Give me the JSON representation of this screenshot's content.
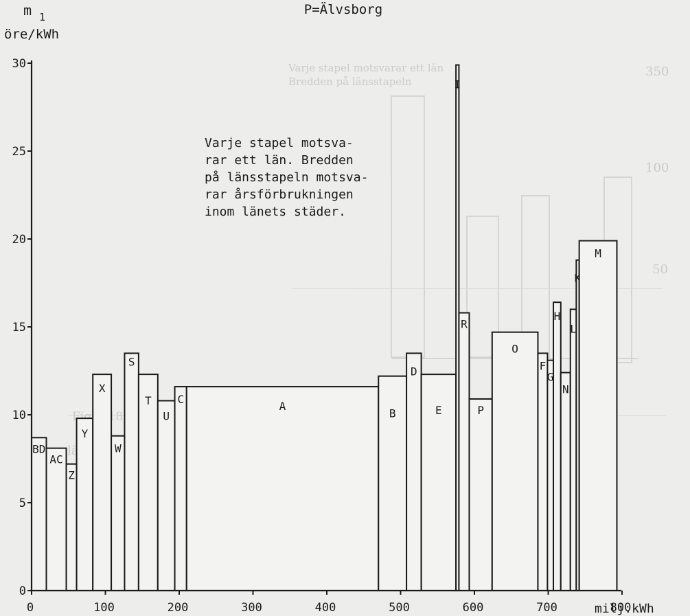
{
  "chart_data": {
    "type": "bar",
    "variable_width": true,
    "title": "P=Älvsborg",
    "ylabel_symbol": "m",
    "ylabel_subscript": "1",
    "ylabel_unit": "öre/kWh",
    "xlabel": "milj.kWh",
    "xlim": [
      0,
      850
    ],
    "ylim": [
      0,
      30
    ],
    "x_ticks": [
      "0",
      "100",
      "200",
      "300",
      "400",
      "500",
      "600",
      "700",
      "800"
    ],
    "y_ticks": [
      "0",
      "5",
      "10",
      "15",
      "20",
      "25",
      "30"
    ],
    "annotation": [
      "Varje stapel motsva-",
      "rar ett län. Bredden",
      "på länsstapeln motsva-",
      "rar årsförbrukningen",
      "inom länets städer."
    ],
    "bars": [
      {
        "label": "BD",
        "x0": 0,
        "x1": 20,
        "value": 8.7
      },
      {
        "label": "AC",
        "x0": 20,
        "x1": 47,
        "value": 8.1
      },
      {
        "label": "Z",
        "x0": 47,
        "x1": 61,
        "value": 7.2
      },
      {
        "label": "Y",
        "x0": 61,
        "x1": 83,
        "value": 9.8
      },
      {
        "label": "X",
        "x0": 83,
        "x1": 108,
        "value": 12.3
      },
      {
        "label": "W",
        "x0": 108,
        "x1": 126,
        "value": 8.8
      },
      {
        "label": "S",
        "x0": 126,
        "x1": 145,
        "value": 13.5
      },
      {
        "label": "T",
        "x0": 145,
        "x1": 171,
        "value": 12.3
      },
      {
        "label": "U",
        "x0": 171,
        "x1": 194,
        "value": 10.8
      },
      {
        "label": "C",
        "x0": 194,
        "x1": 210,
        "value": 11.6
      },
      {
        "label": "A",
        "x0": 210,
        "x1": 470,
        "value": 11.6
      },
      {
        "label": "B",
        "x0": 470,
        "x1": 508,
        "value": 12.2
      },
      {
        "label": "D",
        "x0": 508,
        "x1": 528,
        "value": 13.5
      },
      {
        "label": "E",
        "x0": 528,
        "x1": 575,
        "value": 12.3
      },
      {
        "label": "I",
        "x0": 575,
        "x1": 579,
        "value": 29.9
      },
      {
        "label": "R",
        "x0": 579,
        "x1": 593,
        "value": 15.8
      },
      {
        "label": "P",
        "x0": 593,
        "x1": 624,
        "value": 10.9
      },
      {
        "label": "O",
        "x0": 624,
        "x1": 686,
        "value": 14.7
      },
      {
        "label": "F",
        "x0": 686,
        "x1": 699,
        "value": 13.5
      },
      {
        "label": "G",
        "x0": 699,
        "x1": 707,
        "value": 13.1
      },
      {
        "label": "H",
        "x0": 707,
        "x1": 717,
        "value": 16.4
      },
      {
        "label": "N",
        "x0": 717,
        "x1": 730,
        "value": 12.4
      },
      {
        "label": "L",
        "x0": 730,
        "x1": 738,
        "value": 16.0
      },
      {
        "label": "K",
        "x0": 738,
        "x1": 742,
        "value": 18.8
      },
      {
        "label": "M",
        "x0": 742,
        "x1": 793,
        "value": 19.9
      }
    ]
  }
}
